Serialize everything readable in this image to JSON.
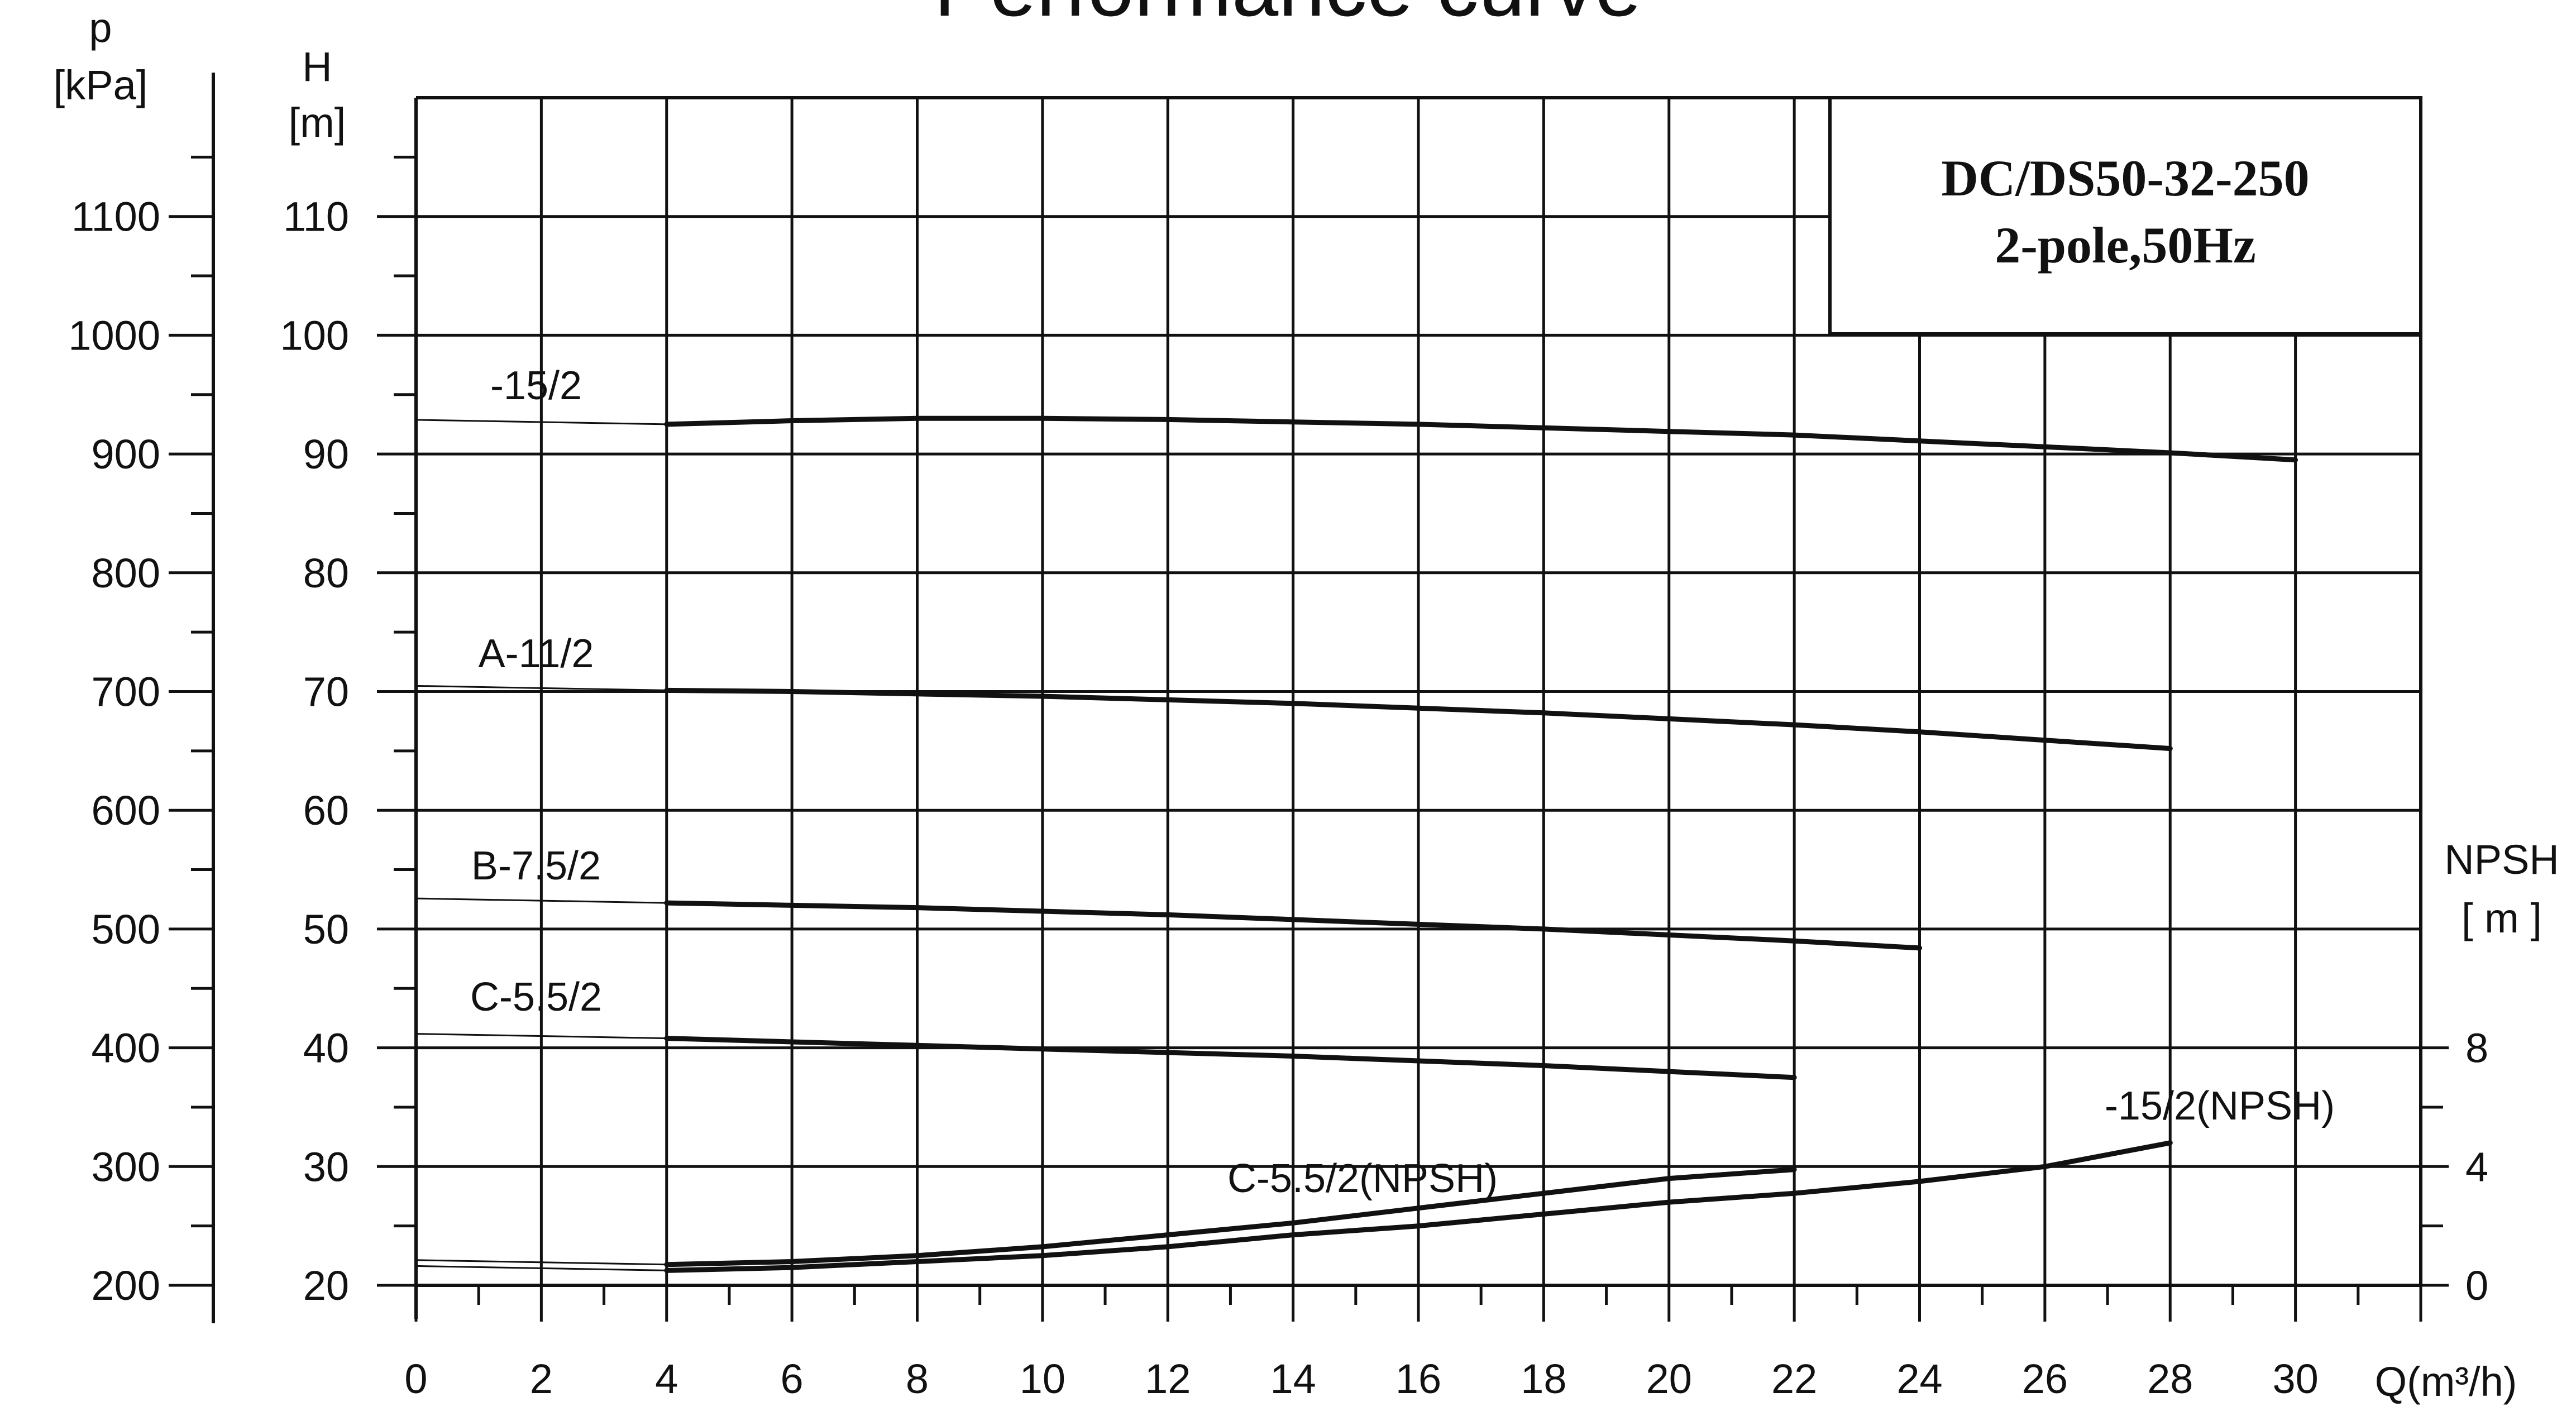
{
  "title": "Performance curve",
  "info_box": {
    "model": "DC/DS50-32-250",
    "spec": "2-pole,50Hz"
  },
  "colors": {
    "line": "#111111",
    "grid": "#111111",
    "background": "#ffffff"
  },
  "chart_data": {
    "type": "line",
    "title": "Performance curve",
    "grid": true,
    "legend": "none",
    "x_axis": {
      "label": "Q(m³/h)",
      "range": [
        0,
        32
      ],
      "ticks": [
        0,
        2,
        4,
        6,
        8,
        10,
        12,
        14,
        16,
        18,
        20,
        22,
        24,
        26,
        28,
        30
      ],
      "tick_labels": [
        "0",
        "2",
        "4",
        "6",
        "8",
        "10",
        "12",
        "14",
        "16",
        "18",
        "20",
        "22",
        "24",
        "26",
        "28",
        "30"
      ]
    },
    "y_axis_head": {
      "label_line1": "H",
      "label_line2": "[m]",
      "range": [
        20,
        120
      ],
      "ticks": [
        20,
        30,
        40,
        50,
        60,
        70,
        80,
        90,
        100,
        110
      ],
      "tick_labels": [
        "20",
        "30",
        "40",
        "50",
        "60",
        "70",
        "80",
        "90",
        "100",
        "110"
      ]
    },
    "y_axis_pressure": {
      "label_line1": "p",
      "label_line2": "[kPa]",
      "range": [
        200,
        1200
      ],
      "ticks": [
        200,
        300,
        400,
        500,
        600,
        700,
        800,
        900,
        1000,
        1100
      ],
      "tick_labels": [
        "200",
        "300",
        "400",
        "500",
        "600",
        "700",
        "800",
        "900",
        "1000",
        "1100"
      ]
    },
    "y_axis_npsh": {
      "label_line1": "NPSH",
      "label_line2": "[ m ]",
      "range": [
        0,
        8
      ],
      "ticks": [
        0,
        4,
        8
      ],
      "tick_labels": [
        "0",
        "4",
        "8"
      ]
    },
    "series": [
      {
        "name": "-15/2",
        "axis": "head",
        "x": [
          4,
          6,
          8,
          10,
          12,
          14,
          16,
          18,
          20,
          22,
          24,
          26,
          28,
          30
        ],
        "y": [
          92.5,
          92.8,
          93.0,
          93.0,
          92.9,
          92.7,
          92.5,
          92.2,
          91.9,
          91.6,
          91.1,
          90.6,
          90.1,
          89.5
        ]
      },
      {
        "name": "A-11/2",
        "axis": "head",
        "x": [
          4,
          6,
          8,
          10,
          12,
          14,
          16,
          18,
          20,
          22,
          24,
          26,
          28
        ],
        "y": [
          70.1,
          70.0,
          69.8,
          69.6,
          69.3,
          69.0,
          68.6,
          68.2,
          67.7,
          67.2,
          66.6,
          65.9,
          65.2
        ]
      },
      {
        "name": "B-7.5/2",
        "axis": "head",
        "x": [
          4,
          6,
          8,
          10,
          12,
          14,
          16,
          18,
          20,
          22,
          24
        ],
        "y": [
          52.2,
          52.0,
          51.8,
          51.5,
          51.2,
          50.8,
          50.4,
          50.0,
          49.5,
          49.0,
          48.4
        ]
      },
      {
        "name": "C-5.5/2",
        "axis": "head",
        "x": [
          4,
          6,
          8,
          10,
          12,
          14,
          16,
          18,
          20,
          22
        ],
        "y": [
          40.8,
          40.5,
          40.2,
          39.9,
          39.6,
          39.3,
          38.9,
          38.5,
          38.0,
          37.5
        ]
      },
      {
        "name": "C-5.5/2(NPSH)",
        "axis": "npsh",
        "x": [
          4,
          6,
          8,
          10,
          12,
          14,
          16,
          18,
          20,
          22
        ],
        "y": [
          0.7,
          0.8,
          1.0,
          1.3,
          1.7,
          2.1,
          2.6,
          3.1,
          3.6,
          3.9
        ]
      },
      {
        "name": "-15/2(NPSH)",
        "axis": "npsh",
        "x": [
          4,
          6,
          8,
          10,
          12,
          14,
          16,
          18,
          20,
          22,
          24,
          26,
          28
        ],
        "y": [
          0.5,
          0.6,
          0.8,
          1.0,
          1.3,
          1.7,
          2.0,
          2.4,
          2.8,
          3.1,
          3.5,
          4.0,
          4.8
        ]
      }
    ]
  }
}
